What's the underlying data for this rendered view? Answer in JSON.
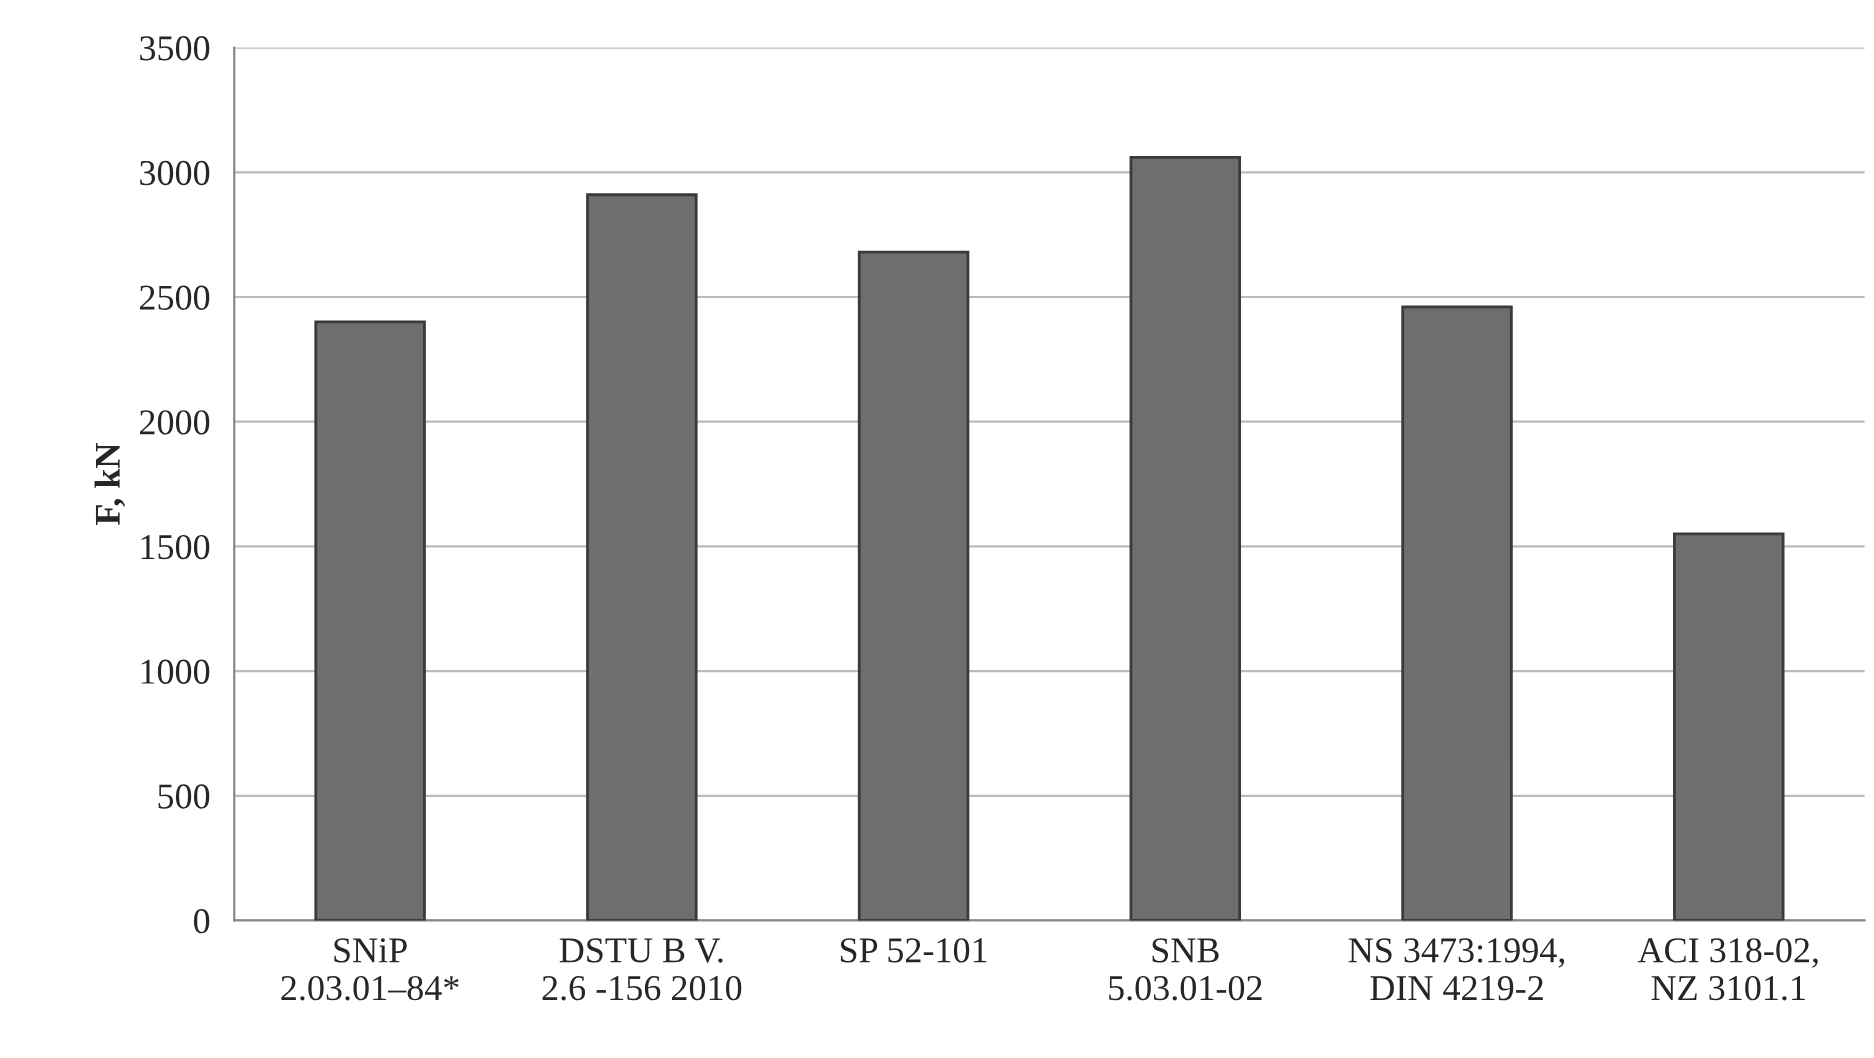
{
  "chart_data": {
    "type": "bar",
    "ylabel": "F, kN",
    "categories": [
      "SNiP\n2.03.01–84*",
      "DSTU B V.\n2.6 -156 2010",
      "SP 52-101",
      "SNB\n5.03.01-02",
      "NS 3473:1994,\nDIN 4219-2",
      "ACI 318-02,\nNZ 3101.1"
    ],
    "values": [
      2400,
      2910,
      2680,
      3060,
      2460,
      1550
    ],
    "color": "#6e6e6e",
    "ylim": [
      0,
      3500
    ],
    "yticks": [
      0,
      500,
      1000,
      1500,
      2000,
      2500,
      3000,
      3500
    ],
    "grid": "y"
  }
}
